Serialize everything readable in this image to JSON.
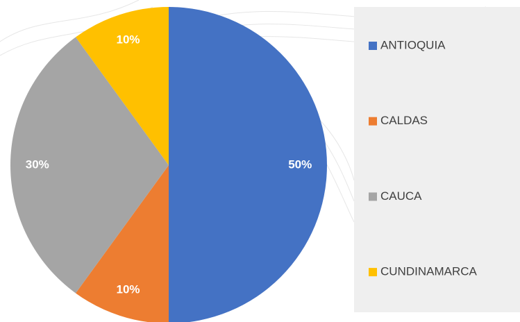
{
  "chart_data": {
    "type": "pie",
    "categories": [
      "ANTIOQUIA",
      "CALDAS",
      "CAUCA",
      "CUNDINAMARCA"
    ],
    "values": [
      50,
      10,
      30,
      10
    ],
    "value_labels": [
      "50%",
      "10%",
      "30%",
      "10%"
    ],
    "colors": [
      "#4472c4",
      "#ed7d31",
      "#a5a5a5",
      "#ffc000"
    ],
    "legend": "right"
  }
}
